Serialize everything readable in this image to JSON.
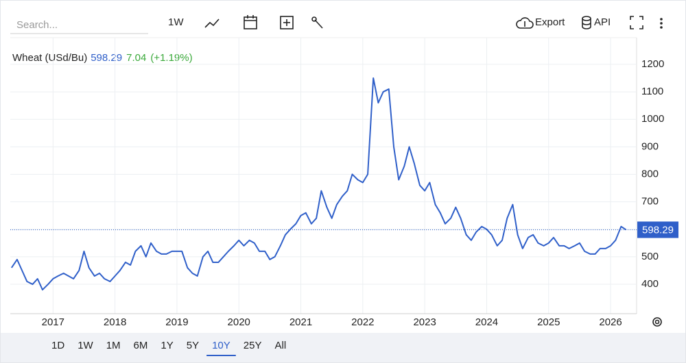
{
  "toolbar": {
    "search_placeholder": "Search...",
    "interval": "1W",
    "export": "Export",
    "api": "API"
  },
  "chart_data": {
    "type": "line",
    "x": [
      2016.33,
      2016.42,
      2016.5,
      2016.58,
      2016.67,
      2016.75,
      2016.83,
      2016.92,
      2017.0,
      2017.08,
      2017.17,
      2017.25,
      2017.33,
      2017.42,
      2017.5,
      2017.58,
      2017.67,
      2017.75,
      2017.83,
      2017.92,
      2018.0,
      2018.08,
      2018.17,
      2018.25,
      2018.33,
      2018.42,
      2018.5,
      2018.58,
      2018.67,
      2018.75,
      2018.83,
      2018.92,
      2019.0,
      2019.08,
      2019.17,
      2019.25,
      2019.33,
      2019.42,
      2019.5,
      2019.58,
      2019.67,
      2019.75,
      2019.83,
      2019.92,
      2020.0,
      2020.08,
      2020.17,
      2020.25,
      2020.33,
      2020.42,
      2020.5,
      2020.58,
      2020.67,
      2020.75,
      2020.83,
      2020.92,
      2021.0,
      2021.08,
      2021.17,
      2021.25,
      2021.33,
      2021.42,
      2021.5,
      2021.58,
      2021.67,
      2021.75,
      2021.83,
      2021.92,
      2022.0,
      2022.08,
      2022.17,
      2022.25,
      2022.33,
      2022.42,
      2022.5,
      2022.58,
      2022.67,
      2022.75,
      2022.83,
      2022.92,
      2023.0,
      2023.08,
      2023.17,
      2023.25,
      2023.33,
      2023.42,
      2023.5,
      2023.58,
      2023.67,
      2023.75,
      2023.83,
      2023.92,
      2024.0,
      2024.08,
      2024.17,
      2024.25,
      2024.33,
      2024.42,
      2024.5,
      2024.58,
      2024.67,
      2024.75,
      2024.83,
      2024.92,
      2025.0,
      2025.08,
      2025.17,
      2025.25,
      2025.33,
      2025.42,
      2025.5,
      2025.58,
      2025.67,
      2025.75,
      2025.83,
      2025.92,
      2026.0,
      2026.08,
      2026.17,
      2026.25
    ],
    "series": [
      {
        "name": "Wheat (USd/Bu)",
        "color": "#2f5fc9",
        "values": [
          460,
          490,
          450,
          410,
          400,
          420,
          380,
          400,
          420,
          430,
          440,
          430,
          420,
          450,
          520,
          460,
          430,
          440,
          420,
          410,
          430,
          450,
          480,
          470,
          520,
          540,
          500,
          550,
          520,
          510,
          510,
          520,
          520,
          520,
          460,
          440,
          430,
          500,
          520,
          480,
          480,
          500,
          520,
          540,
          560,
          540,
          560,
          550,
          520,
          520,
          490,
          500,
          540,
          580,
          600,
          620,
          650,
          660,
          620,
          640,
          740,
          680,
          640,
          690,
          720,
          740,
          800,
          780,
          770,
          800,
          1150,
          1060,
          1100,
          1110,
          900,
          780,
          830,
          900,
          840,
          760,
          740,
          770,
          690,
          660,
          620,
          640,
          680,
          640,
          580,
          560,
          590,
          610,
          600,
          580,
          540,
          560,
          640,
          690,
          580,
          530,
          570,
          580,
          550,
          540,
          550,
          570,
          540,
          540,
          530,
          540,
          550,
          520,
          510,
          510,
          530,
          530,
          540,
          560,
          610,
          598.29
        ]
      }
    ],
    "last_value": 598.29,
    "change": 7.04,
    "change_pct_label": "(+1.19%)",
    "xlim": [
      2016.31,
      2026.42
    ],
    "xticks": [
      2017,
      2018,
      2019,
      2020,
      2021,
      2022,
      2023,
      2024,
      2025,
      2026
    ],
    "ylim": [
      293,
      1297
    ],
    "yticks": [
      400,
      500,
      600,
      700,
      800,
      900,
      1000,
      1100,
      1200
    ],
    "grid": true
  },
  "ranges": [
    "1D",
    "1W",
    "1M",
    "6M",
    "1Y",
    "5Y",
    "10Y",
    "25Y",
    "All"
  ],
  "selected_range_index": 6
}
